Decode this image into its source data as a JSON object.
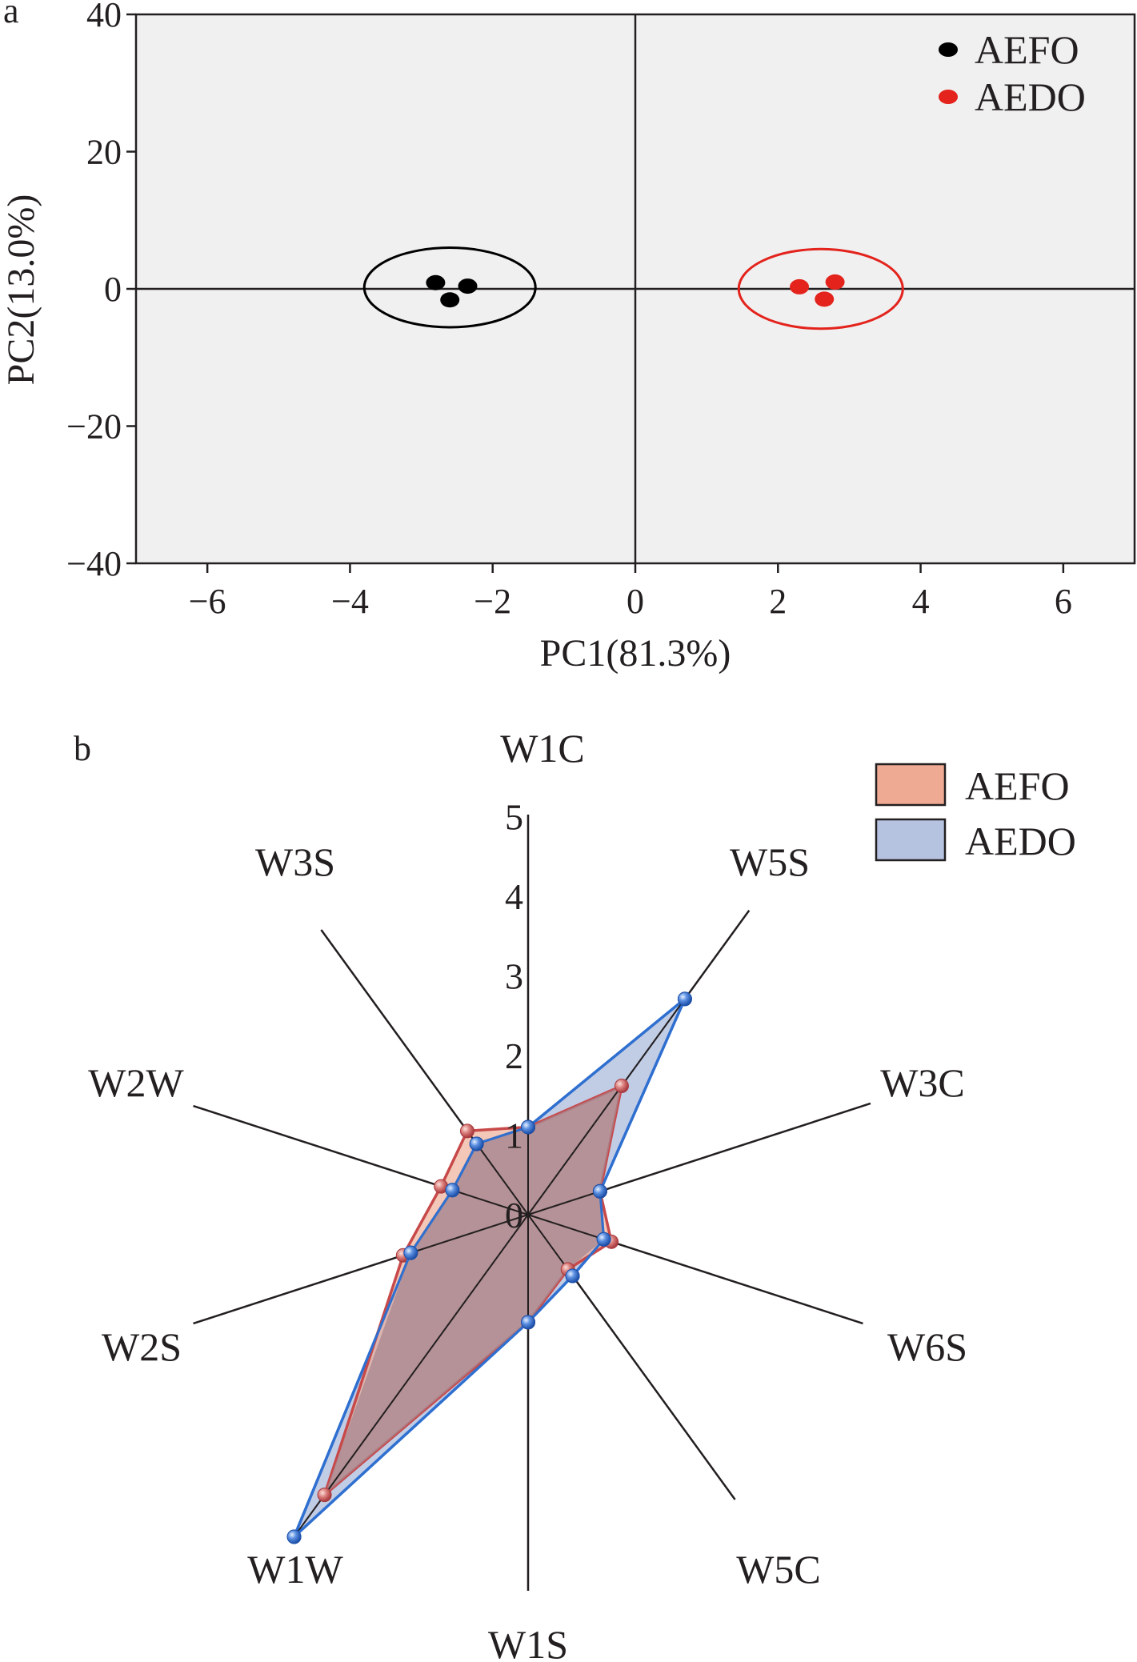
{
  "chart_data": [
    {
      "panel": "a",
      "type": "scatter",
      "xlabel": "PC1(81.3%)",
      "ylabel": "PC2(13.0%)",
      "xlim": [
        -7,
        7
      ],
      "ylim": [
        -40,
        40
      ],
      "xticks": [
        -6,
        -4,
        -2,
        0,
        2,
        4,
        6
      ],
      "yticks": [
        40,
        20,
        0,
        -20,
        -40
      ],
      "xtick_labels": [
        "−6",
        "−4",
        "−2",
        "0",
        "2",
        "4",
        "6"
      ],
      "ytick_labels": [
        "40",
        "20",
        "0",
        "−20",
        "−40"
      ],
      "grid": false,
      "zero_lines": true,
      "background": "#f0f0f0",
      "legend_placement": "top-right",
      "series": [
        {
          "name": "AEFO",
          "color": "#000000",
          "points": [
            [
              -2.8,
              0.9
            ],
            [
              -2.35,
              0.4
            ],
            [
              -2.6,
              -1.6
            ]
          ],
          "ellipse": {
            "cx": -2.6,
            "cy": 0.2,
            "rx": 1.2,
            "ry": 5.8
          }
        },
        {
          "name": "AEDO",
          "color": "#e3231c",
          "points": [
            [
              2.3,
              0.3
            ],
            [
              2.8,
              1.0
            ],
            [
              2.65,
              -1.5
            ]
          ],
          "ellipse": {
            "cx": 2.6,
            "cy": 0.0,
            "rx": 1.15,
            "ry": 5.8
          }
        }
      ]
    },
    {
      "panel": "b",
      "type": "radar",
      "axes": [
        "W1C",
        "W5S",
        "W3C",
        "W6S",
        "W5C",
        "W1S",
        "W1W",
        "W2S",
        "W2W",
        "W3S"
      ],
      "rmax": 5,
      "ticks": [
        "0",
        "1",
        "2",
        "3",
        "4",
        "5"
      ],
      "legend_placement": "top-right",
      "series": [
        {
          "name": "AEFO",
          "fill": "#eeaa92",
          "stroke": "#c7494a",
          "values": [
            1.1,
            2.0,
            0.95,
            1.1,
            0.85,
            1.35,
            4.35,
            1.65,
            1.15,
            1.3
          ]
        },
        {
          "name": "AEDO",
          "fill": "#b6c3e0",
          "stroke": "#2e6fd0",
          "values": [
            1.1,
            3.35,
            0.95,
            1.0,
            0.95,
            1.35,
            5.0,
            1.55,
            1.0,
            1.1
          ]
        }
      ]
    }
  ]
}
